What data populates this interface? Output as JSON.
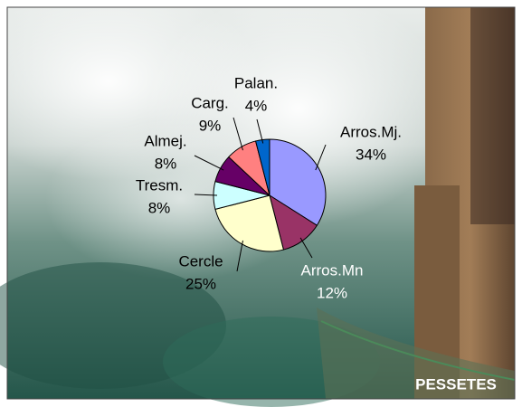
{
  "chart_data": {
    "type": "pie",
    "categories": [
      "Arros.Mj.",
      "Arros.Mn",
      "Cercle",
      "Tresm.",
      "Almej.",
      "Carg.",
      "Palan."
    ],
    "values": [
      34,
      12,
      25,
      8,
      8,
      9,
      4
    ],
    "value_labels": [
      "34%",
      "12%",
      "25%",
      "8%",
      "8%",
      "9%",
      "4%"
    ],
    "colors": [
      "#9999ff",
      "#993366",
      "#ffffcc",
      "#ccffff",
      "#660066",
      "#ff8080",
      "#0066cc"
    ],
    "annotation": "PESSETES"
  }
}
